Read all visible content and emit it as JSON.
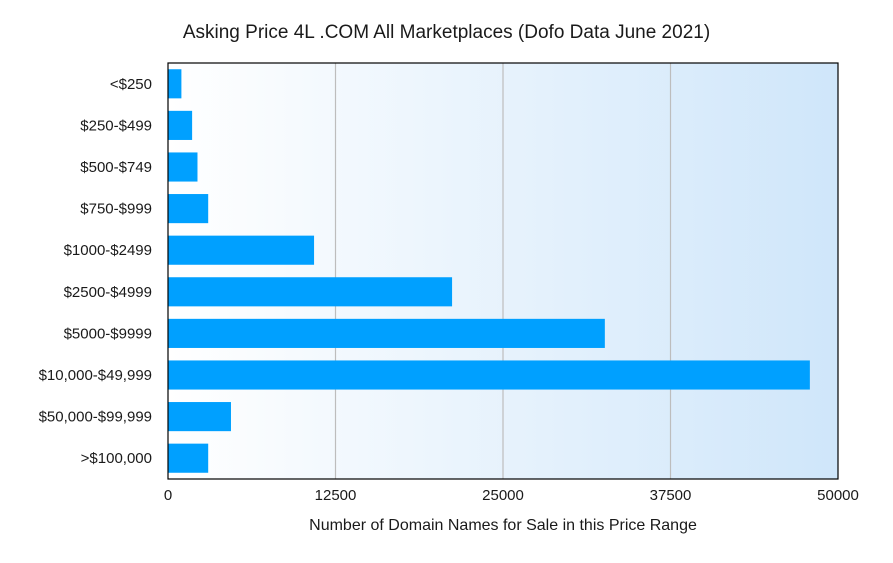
{
  "chart_data": {
    "type": "bar",
    "orientation": "horizontal",
    "title": "Asking Price 4L .COM All Marketplaces (Dofo Data June 2021)",
    "xlabel": "Number of Domain Names for Sale in this Price Range",
    "ylabel": "",
    "xlim": [
      0,
      50000
    ],
    "xticks": [
      0,
      12500,
      25000,
      37500,
      50000
    ],
    "xtick_labels": [
      "0",
      "12500",
      "25000",
      "37500",
      "50000"
    ],
    "grid": "vertical",
    "categories": [
      "<$250",
      "$250-$499",
      "$500-$749",
      "$750-$999",
      "$1000-$2499",
      "$2500-$4999",
      "$5000-$9999",
      "$10,000-$49,999",
      "$50,000-$99,999",
      ">$100,000"
    ],
    "values": [
      1000,
      1800,
      2200,
      3000,
      10900,
      21200,
      32600,
      47900,
      4700,
      3000
    ],
    "colors": {
      "bar": "#00a0ff",
      "background_start": "#ffffff",
      "background_end": "#cfe6fa",
      "grid": "#bdbdbd",
      "frame": "#000000"
    }
  }
}
